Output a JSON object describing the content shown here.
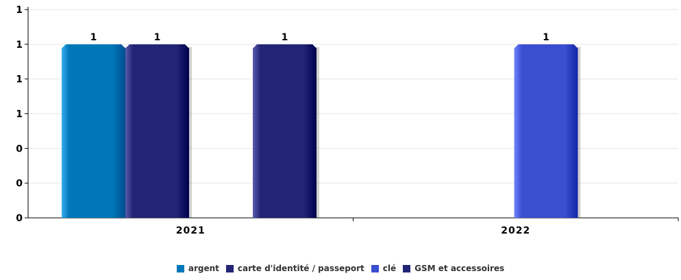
{
  "chart_data": {
    "type": "bar",
    "categories": [
      "2021",
      "2022"
    ],
    "y_tick_labels": [
      "0",
      "0",
      "0",
      "1",
      "1",
      "1",
      "1"
    ],
    "ylim": [
      0,
      1.2
    ],
    "grid": true,
    "legend_position": "bottom-center",
    "series": [
      {
        "name": "argent",
        "color": "#0077B8",
        "values": [
          1,
          null
        ],
        "labels": [
          "1",
          ""
        ]
      },
      {
        "name": "carte d'identité / passeport",
        "color": "#222575",
        "values": [
          1,
          null
        ],
        "labels": [
          "1",
          ""
        ]
      },
      {
        "name": "clé",
        "color": "#3A4ED0",
        "values": [
          null,
          1
        ],
        "labels": [
          "",
          "1"
        ]
      },
      {
        "name": "GSM et accessoires",
        "color": "#222575",
        "values": [
          1,
          null
        ],
        "labels": [
          "1",
          ""
        ]
      }
    ]
  }
}
